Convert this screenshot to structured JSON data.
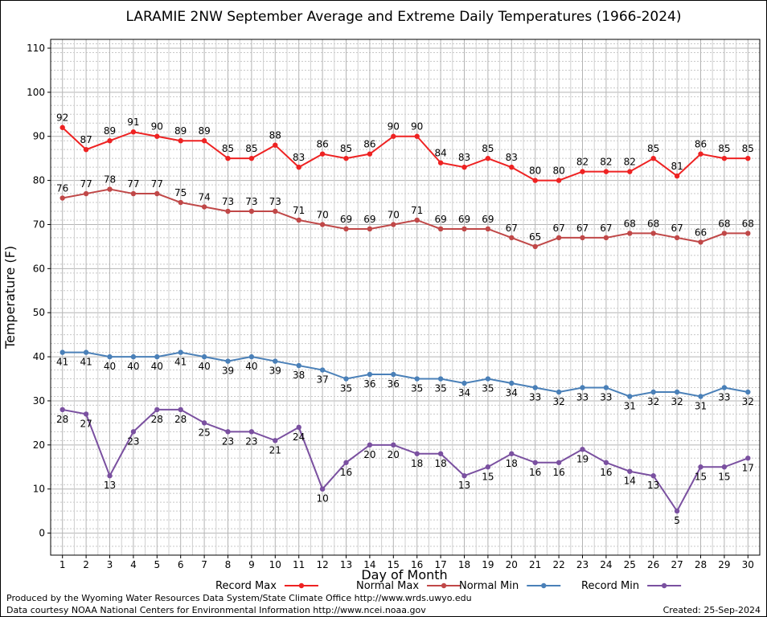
{
  "chart_data": {
    "type": "line",
    "title": "LARAMIE 2NW September Average and Extreme Daily Temperatures (1966-2024)",
    "xlabel": "Day of Month",
    "ylabel": "Temperature (F)",
    "x": [
      1,
      2,
      3,
      4,
      5,
      6,
      7,
      8,
      9,
      10,
      11,
      12,
      13,
      14,
      15,
      16,
      17,
      18,
      19,
      20,
      21,
      22,
      23,
      24,
      25,
      26,
      27,
      28,
      29,
      30
    ],
    "xlim": [
      0.5,
      30.5
    ],
    "ylim": [
      -5,
      112
    ],
    "yticks": [
      0,
      10,
      20,
      30,
      40,
      50,
      60,
      70,
      80,
      90,
      100,
      110
    ],
    "grid": true,
    "legend_position": "bottom",
    "series": [
      {
        "name": "Record Max",
        "color": "#ee2222",
        "label_position": "above",
        "values": [
          92,
          87,
          89,
          91,
          90,
          89,
          89,
          85,
          85,
          88,
          83,
          86,
          85,
          86,
          90,
          90,
          84,
          83,
          85,
          83,
          80,
          80,
          82,
          82,
          82,
          85,
          81,
          86,
          85,
          85
        ]
      },
      {
        "name": "Normal Max",
        "color": "#c04848",
        "label_position": "above",
        "values": [
          76,
          77,
          78,
          77,
          77,
          75,
          74,
          73,
          73,
          73,
          71,
          70,
          69,
          69,
          70,
          71,
          69,
          69,
          69,
          67,
          65,
          67,
          67,
          67,
          68,
          68,
          67,
          66,
          68,
          68
        ]
      },
      {
        "name": "Normal Min",
        "color": "#4a80b8",
        "label_position": "below",
        "values": [
          41,
          41,
          40,
          40,
          40,
          41,
          40,
          39,
          40,
          39,
          38,
          37,
          35,
          36,
          36,
          35,
          35,
          34,
          35,
          34,
          33,
          32,
          33,
          33,
          31,
          32,
          32,
          31,
          33,
          32
        ]
      },
      {
        "name": "Record Min",
        "color": "#7a50a0",
        "label_position": "below",
        "values": [
          28,
          27,
          13,
          23,
          28,
          28,
          25,
          23,
          23,
          21,
          24,
          10,
          16,
          20,
          20,
          18,
          18,
          13,
          15,
          18,
          16,
          16,
          19,
          16,
          14,
          13,
          5,
          15,
          15,
          17
        ]
      }
    ]
  },
  "footer": {
    "produced_by": "Produced by the Wyoming Water Resources Data System/State Climate Office http://www.wrds.uwyo.edu",
    "data_courtesy": "Data courtesy NOAA National Centers for Environmental Information http://www.ncei.noaa.gov",
    "created": "Created:  25-Sep-2024"
  }
}
